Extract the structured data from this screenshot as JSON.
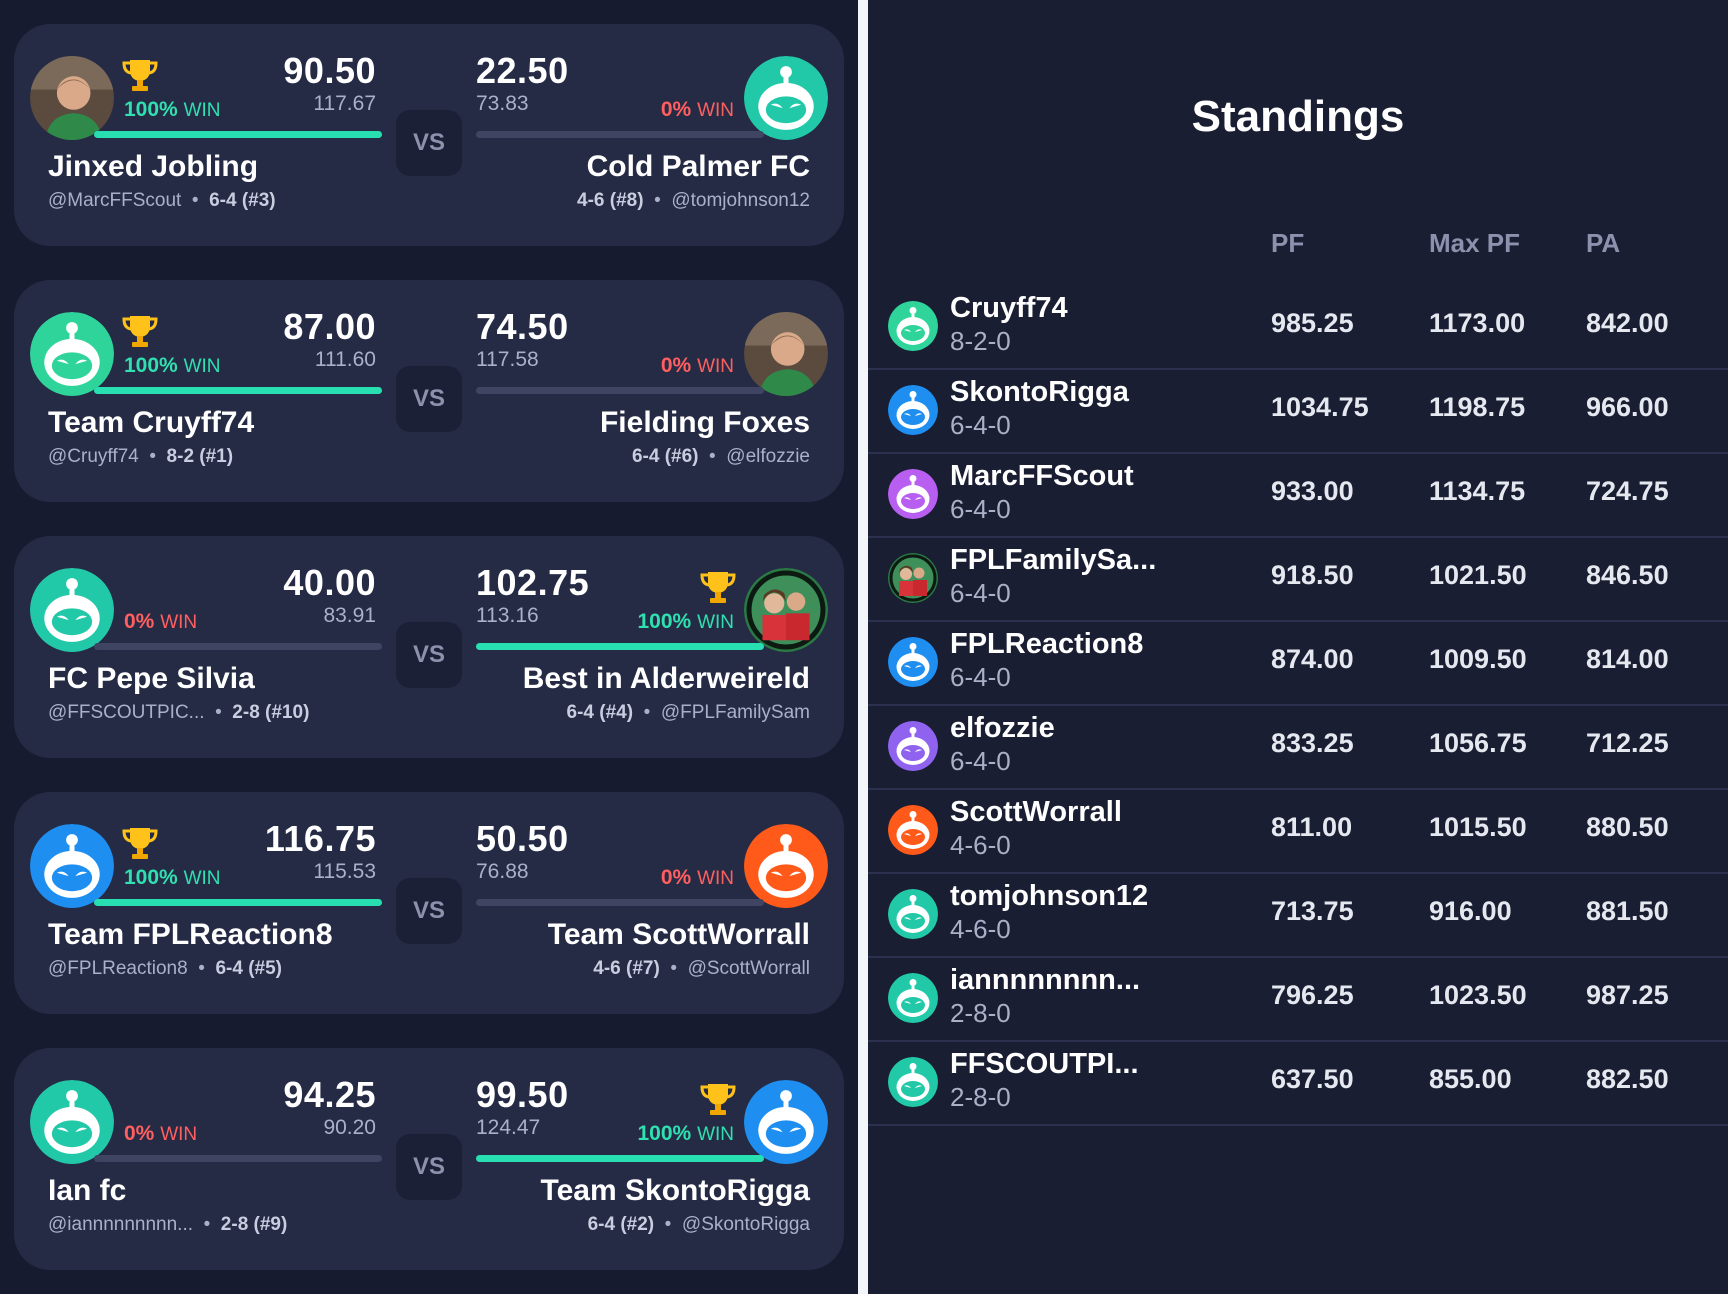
{
  "matchups": [
    {
      "left": {
        "score": "90.50",
        "projected": "117.67",
        "win_pct": "100%",
        "win_word": "WIN",
        "team": "Jinxed Jobling",
        "handle": "@MarcFFScout",
        "record": "6-4 (#3)",
        "trophy": true,
        "avatar": "person-photo-icon",
        "win_fraction": 1.0
      },
      "right": {
        "score": "22.50",
        "projected": "73.83",
        "win_pct": "0%",
        "win_word": "WIN",
        "team": "Cold Palmer FC",
        "handle": "@tomjohnson12",
        "record": "4-6 (#8)",
        "trophy": false,
        "avatar": "robot-teal-icon",
        "win_fraction": 0.0
      },
      "vs": "VS"
    },
    {
      "left": {
        "score": "87.00",
        "projected": "111.60",
        "win_pct": "100%",
        "win_word": "WIN",
        "team": "Team Cruyff74",
        "handle": "@Cruyff74",
        "record": "8-2 (#1)",
        "trophy": true,
        "avatar": "robot-green-icon",
        "win_fraction": 1.0
      },
      "right": {
        "score": "74.50",
        "projected": "117.58",
        "win_pct": "0%",
        "win_word": "WIN",
        "team": "Fielding Foxes",
        "handle": "@elfozzie",
        "record": "6-4 (#6)",
        "trophy": false,
        "avatar": "person-photo-icon",
        "win_fraction": 0.0
      },
      "vs": "VS"
    },
    {
      "left": {
        "score": "40.00",
        "projected": "83.91",
        "win_pct": "0%",
        "win_word": "WIN",
        "team": "FC Pepe Silvia",
        "handle": "@FFSCOUTPIC...",
        "record": "2-8 (#10)",
        "trophy": false,
        "avatar": "robot-teal-icon",
        "win_fraction": 0.0
      },
      "right": {
        "score": "102.75",
        "projected": "113.16",
        "win_pct": "100%",
        "win_word": "WIN",
        "team": "Best in Alderweireld",
        "handle": "@FPLFamilySam",
        "record": "6-4 (#4)",
        "trophy": true,
        "avatar": "family-photo-icon",
        "win_fraction": 1.0
      },
      "vs": "VS"
    },
    {
      "left": {
        "score": "116.75",
        "projected": "115.53",
        "win_pct": "100%",
        "win_word": "WIN",
        "team": "Team FPLReaction8",
        "handle": "@FPLReaction8",
        "record": "6-4 (#5)",
        "trophy": true,
        "avatar": "robot-blue-icon",
        "win_fraction": 1.0
      },
      "right": {
        "score": "50.50",
        "projected": "76.88",
        "win_pct": "0%",
        "win_word": "WIN",
        "team": "Team ScottWorrall",
        "handle": "@ScottWorrall",
        "record": "4-6 (#7)",
        "trophy": false,
        "avatar": "robot-orange-icon",
        "win_fraction": 0.0
      },
      "vs": "VS"
    },
    {
      "left": {
        "score": "94.25",
        "projected": "90.20",
        "win_pct": "0%",
        "win_word": "WIN",
        "team": "Ian fc",
        "handle": "@iannnnnnnnn...",
        "record": "2-8 (#9)",
        "trophy": false,
        "avatar": "robot-teal-icon",
        "win_fraction": 0.0
      },
      "right": {
        "score": "99.50",
        "projected": "124.47",
        "win_pct": "100%",
        "win_word": "WIN",
        "team": "Team SkontoRigga",
        "handle": "@SkontoRigga",
        "record": "6-4 (#2)",
        "trophy": true,
        "avatar": "robot-blue-icon",
        "win_fraction": 1.0
      },
      "vs": "VS"
    }
  ],
  "standings": {
    "title": "Standings",
    "columns": [
      "PF",
      "Max PF",
      "PA"
    ],
    "rows": [
      {
        "name": "Cruyff74",
        "record": "8-2-0",
        "pf": "985.25",
        "max_pf": "1173.00",
        "pa": "842.00",
        "avatar": "robot-green-icon"
      },
      {
        "name": "SkontoRigga",
        "record": "6-4-0",
        "pf": "1034.75",
        "max_pf": "1198.75",
        "pa": "966.00",
        "avatar": "robot-blue-icon"
      },
      {
        "name": "MarcFFScout",
        "record": "6-4-0",
        "pf": "933.00",
        "max_pf": "1134.75",
        "pa": "724.75",
        "avatar": "robot-purple-icon"
      },
      {
        "name": "FPLFamilySa...",
        "record": "6-4-0",
        "pf": "918.50",
        "max_pf": "1021.50",
        "pa": "846.50",
        "avatar": "family-photo-icon"
      },
      {
        "name": "FPLReaction8",
        "record": "6-4-0",
        "pf": "874.00",
        "max_pf": "1009.50",
        "pa": "814.00",
        "avatar": "robot-blue-icon"
      },
      {
        "name": "elfozzie",
        "record": "6-4-0",
        "pf": "833.25",
        "max_pf": "1056.75",
        "pa": "712.25",
        "avatar": "robot-violet-icon"
      },
      {
        "name": "ScottWorrall",
        "record": "4-6-0",
        "pf": "811.00",
        "max_pf": "1015.50",
        "pa": "880.50",
        "avatar": "robot-orange-icon"
      },
      {
        "name": "tomjohnson12",
        "record": "4-6-0",
        "pf": "713.75",
        "max_pf": "916.00",
        "pa": "881.50",
        "avatar": "robot-teal-icon"
      },
      {
        "name": "iannnnnnnn...",
        "record": "2-8-0",
        "pf": "796.25",
        "max_pf": "1023.50",
        "pa": "987.25",
        "avatar": "robot-teal-icon"
      },
      {
        "name": "FFSCOUTPI...",
        "record": "2-8-0",
        "pf": "637.50",
        "max_pf": "855.00",
        "pa": "882.50",
        "avatar": "robot-teal-icon"
      }
    ]
  },
  "colors": {
    "robot-green-icon": "#2fd49a",
    "robot-teal-icon": "#22c9a8",
    "robot-blue-icon": "#1e8ef0",
    "robot-orange-icon": "#ff5a1a",
    "robot-purple-icon": "#b85ef0",
    "robot-violet-icon": "#8f63f0",
    "win_bar": "#27dfb0",
    "win_high": "#2fe0b0",
    "win_low": "#ff5f5f"
  }
}
